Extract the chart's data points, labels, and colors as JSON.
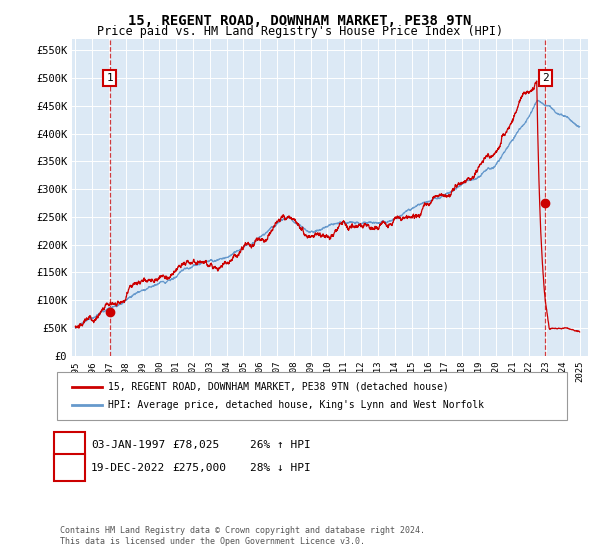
{
  "title": "15, REGENT ROAD, DOWNHAM MARKET, PE38 9TN",
  "subtitle": "Price paid vs. HM Land Registry's House Price Index (HPI)",
  "legend_line1": "15, REGENT ROAD, DOWNHAM MARKET, PE38 9TN (detached house)",
  "legend_line2": "HPI: Average price, detached house, King's Lynn and West Norfolk",
  "annotation1_label": "1",
  "annotation1_date": "03-JAN-1997",
  "annotation1_price": "£78,025",
  "annotation1_hpi": "26% ↑ HPI",
  "annotation2_label": "2",
  "annotation2_date": "19-DEC-2022",
  "annotation2_price": "£275,000",
  "annotation2_hpi": "28% ↓ HPI",
  "footnote": "Contains HM Land Registry data © Crown copyright and database right 2024.\nThis data is licensed under the Open Government Licence v3.0.",
  "sale1_x": 1997.04,
  "sale1_y": 78025,
  "sale2_x": 2022.97,
  "sale2_y": 275000,
  "ylim": [
    0,
    570000
  ],
  "xlim": [
    1994.8,
    2025.5
  ],
  "yticks": [
    0,
    50000,
    100000,
    150000,
    200000,
    250000,
    300000,
    350000,
    400000,
    450000,
    500000,
    550000
  ],
  "ytick_labels": [
    "£0",
    "£50K",
    "£100K",
    "£150K",
    "£200K",
    "£250K",
    "£300K",
    "£350K",
    "£400K",
    "£450K",
    "£500K",
    "£550K"
  ],
  "xticks": [
    1995,
    1996,
    1997,
    1998,
    1999,
    2000,
    2001,
    2002,
    2003,
    2004,
    2005,
    2006,
    2007,
    2008,
    2009,
    2010,
    2011,
    2012,
    2013,
    2014,
    2015,
    2016,
    2017,
    2018,
    2019,
    2020,
    2021,
    2022,
    2023,
    2024,
    2025
  ],
  "red_color": "#cc0000",
  "blue_color": "#6699cc",
  "bg_color": "#dce9f5"
}
